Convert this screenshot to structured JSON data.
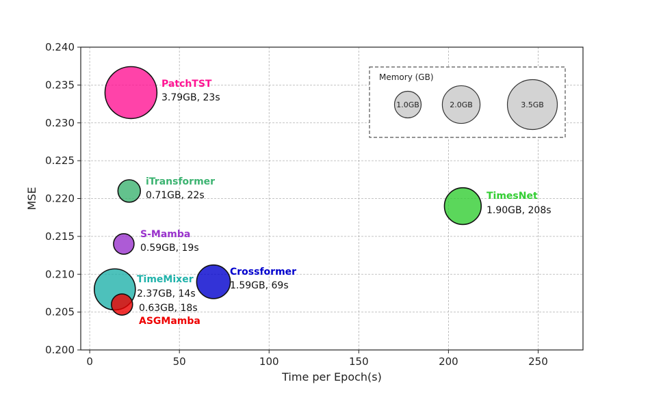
{
  "chart_data": {
    "type": "scatter",
    "xlabel": "Time per Epoch(s)",
    "ylabel": "MSE",
    "xlim": [
      -5,
      275
    ],
    "ylim": [
      0.2,
      0.24
    ],
    "xticks": [
      0,
      50,
      100,
      150,
      200,
      250
    ],
    "xtick_labels": [
      "0",
      "50",
      "100",
      "150",
      "200",
      "250"
    ],
    "yticks": [
      0.2,
      0.205,
      0.21,
      0.215,
      0.22,
      0.225,
      0.23,
      0.235,
      0.24
    ],
    "ytick_labels": [
      "0.200",
      "0.205",
      "0.210",
      "0.215",
      "0.220",
      "0.225",
      "0.230",
      "0.235",
      "0.240"
    ],
    "grid": true,
    "points": [
      {
        "name": "PatchTST",
        "x": 23,
        "y": 0.234,
        "memory_gb": 3.79,
        "color": "#ff1493",
        "label_color": "#ff1493",
        "detail": "3.79GB, 23s"
      },
      {
        "name": "iTransformer",
        "x": 22,
        "y": 0.221,
        "memory_gb": 0.71,
        "color": "#3cb371",
        "label_color": "#3cb371",
        "detail": "0.71GB, 22s"
      },
      {
        "name": "S-Mamba",
        "x": 19,
        "y": 0.214,
        "memory_gb": 0.59,
        "color": "#9932cc",
        "label_color": "#9932cc",
        "detail": "0.59GB, 19s"
      },
      {
        "name": "TimeMixer",
        "x": 14,
        "y": 0.208,
        "memory_gb": 2.37,
        "color": "#20b2aa",
        "label_color": "#20b2aa",
        "detail": "2.37GB, 14s"
      },
      {
        "name": "ASGMamba",
        "x": 18,
        "y": 0.206,
        "memory_gb": 0.63,
        "color": "#ee0000",
        "label_color": "#ee0000",
        "detail": "0.63GB, 18s"
      },
      {
        "name": "Crossformer",
        "x": 69,
        "y": 0.209,
        "memory_gb": 1.59,
        "color": "#0000cd",
        "label_color": "#0000cd",
        "detail": "1.59GB, 69s"
      },
      {
        "name": "TimesNet",
        "x": 208,
        "y": 0.219,
        "memory_gb": 1.9,
        "color": "#32cd32",
        "label_color": "#32cd32",
        "detail": "1.90GB, 208s"
      }
    ],
    "legend": {
      "title": "Memory (GB)",
      "placement": "top-right",
      "entries": [
        {
          "label": "1.0GB",
          "memory_gb": 1.0
        },
        {
          "label": "2.0GB",
          "memory_gb": 2.0
        },
        {
          "label": "3.5GB",
          "memory_gb": 3.5
        }
      ]
    }
  }
}
